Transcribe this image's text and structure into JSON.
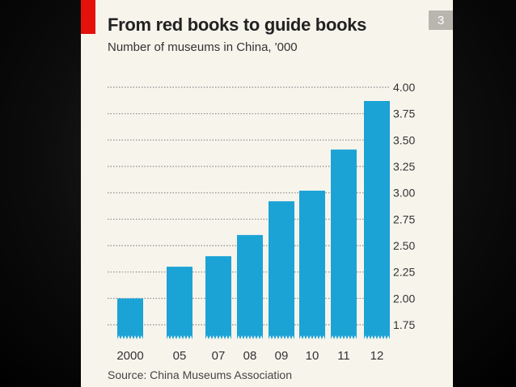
{
  "page": {
    "badge": "3"
  },
  "chart_data": {
    "type": "bar",
    "title": "From red books to guide books",
    "subtitle": "Number of museums in China, '000",
    "source": "Source: China Museums Association",
    "categories": [
      "2000",
      "05",
      "07",
      "08",
      "09",
      "10",
      "11",
      "12"
    ],
    "values": [
      2.0,
      2.3,
      2.4,
      2.6,
      2.92,
      3.02,
      3.41,
      3.87
    ],
    "yticks": [
      "4.00",
      "3.75",
      "3.50",
      "3.25",
      "3.00",
      "2.75",
      "2.50",
      "2.25",
      "2.00",
      "1.75"
    ],
    "ylim": [
      1.75,
      4.0
    ],
    "y_axis_position": "right",
    "grid": true,
    "colors": {
      "bar": "#1ba3d6",
      "grid": "#8a8a8a",
      "accent": "#e3120b"
    }
  }
}
